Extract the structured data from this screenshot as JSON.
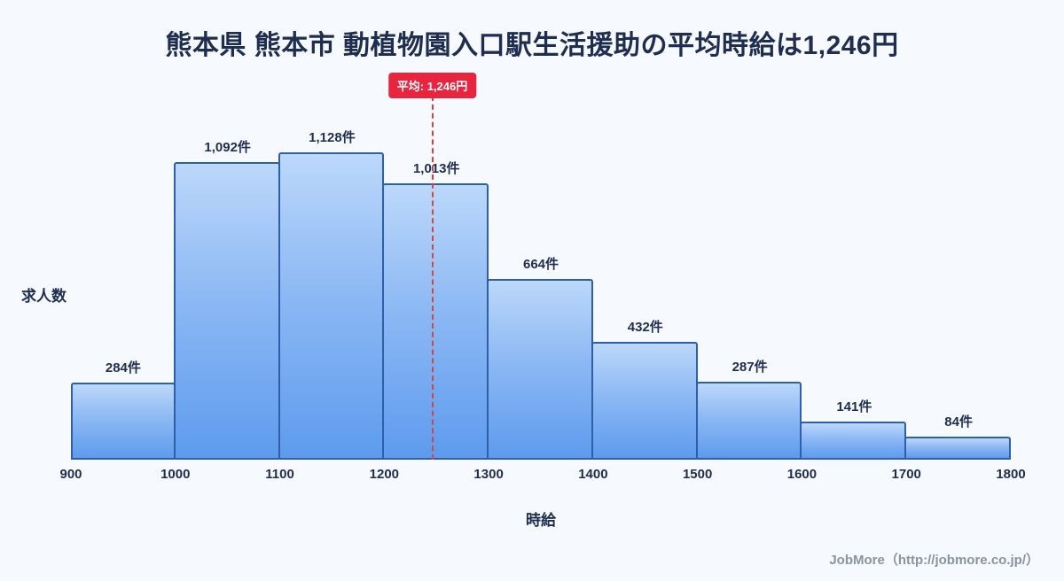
{
  "page": {
    "title": "熊本県 熊本市 動植物園入口駅生活援助の平均時給は1,246円",
    "footer": "JobMore（http://jobmore.co.jp/）"
  },
  "chart_data": {
    "type": "bar",
    "title": "熊本県 熊本市 動植物園入口駅生活援助の平均時給は1,246円",
    "xlabel": "時給",
    "ylabel": "求人数",
    "bin_edges": [
      900,
      1000,
      1100,
      1200,
      1300,
      1400,
      1500,
      1600,
      1700,
      1800
    ],
    "categories": [
      "900-1000",
      "1000-1100",
      "1100-1200",
      "1200-1300",
      "1300-1400",
      "1400-1500",
      "1500-1600",
      "1600-1700",
      "1700-1800"
    ],
    "values": [
      284,
      1092,
      1128,
      1013,
      664,
      432,
      287,
      141,
      84
    ],
    "bar_labels": [
      "284件",
      "1,092件",
      "1,128件",
      "1,013件",
      "664件",
      "432件",
      "287件",
      "141件",
      "84件"
    ],
    "x_ticks": [
      "900",
      "1000",
      "1100",
      "1200",
      "1300",
      "1400",
      "1500",
      "1600",
      "1700",
      "1800"
    ],
    "x_range": [
      900,
      1800
    ],
    "ylim": [
      0,
      1250
    ],
    "average": 1246,
    "average_label": "平均: 1,246円",
    "legend": "none",
    "grid": false,
    "colors": {
      "background": "#f6f9fd",
      "bar_fill_top": "#bcd8fa",
      "bar_fill_bottom": "#5e9bee",
      "bar_border": "#2e5fa8",
      "average_line": "#d9453c",
      "badge_background": "#e8243f",
      "badge_text": "#ffffff",
      "title_text": "#1e2d50",
      "footer_text": "#8b93a3"
    }
  }
}
